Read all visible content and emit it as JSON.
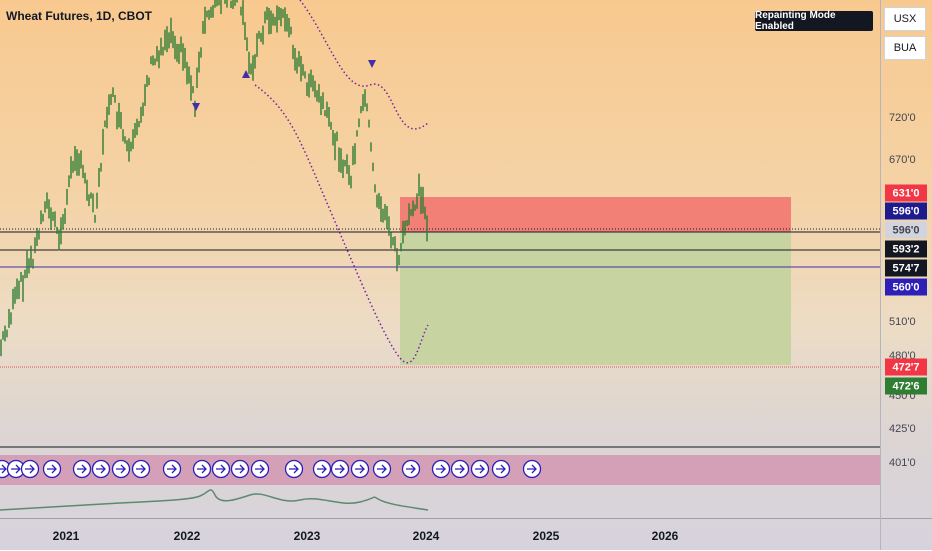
{
  "header": {
    "title": "Wheat Futures, 1D, CBOT"
  },
  "badge": {
    "text": "Repainting Mode Enabled"
  },
  "axis_buttons": {
    "currency": "USX",
    "unit": "BUA"
  },
  "price_axis": {
    "ticks": [
      "720'0",
      "670'0",
      "510'0",
      "480'0",
      "450'0",
      "425'0",
      "401'0"
    ],
    "labels": [
      {
        "text": "631'0",
        "color": "#f23645"
      },
      {
        "text": "596'0",
        "color": "#1e1b8f"
      },
      {
        "text": "596'0",
        "color": "#d1d4dc"
      },
      {
        "text": "593'2",
        "color": "#131722"
      },
      {
        "text": "574'7",
        "color": "#131722"
      },
      {
        "text": "560'0",
        "color": "#2d1fb8"
      },
      {
        "text": "472'7",
        "color": "#f23645"
      },
      {
        "text": "472'6",
        "color": "#2e7d32"
      }
    ]
  },
  "time_axis": {
    "years": [
      "2021",
      "2022",
      "2023",
      "2024",
      "2025",
      "2026"
    ]
  },
  "indicator_icon": "chevron-right-circle-icon",
  "colors": {
    "candle": "#2e7d32",
    "envelope": "#7b1fa2",
    "short_zone": "#f28076",
    "long_zone": "#c8d3a2",
    "signal_strip": "#d4a0b8"
  }
}
